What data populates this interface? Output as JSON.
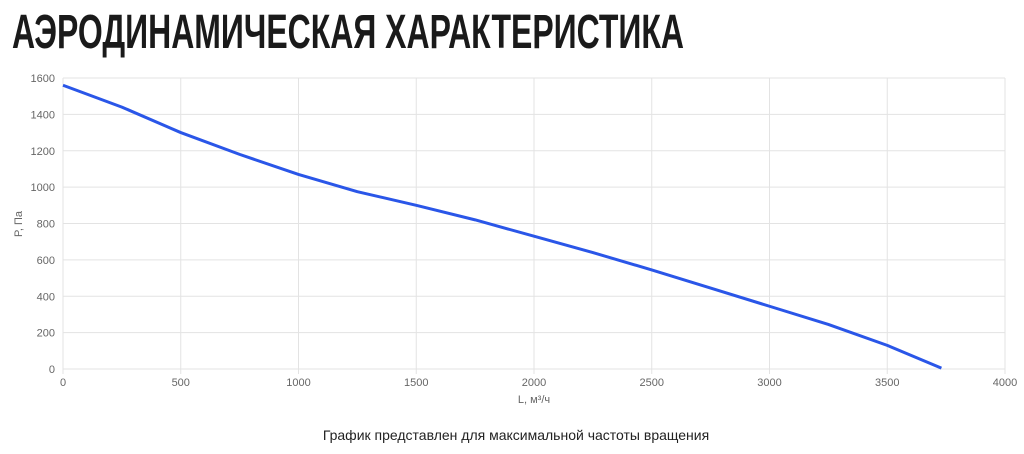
{
  "chart_data": {
    "type": "line",
    "title": "АЭРОДИНАМИЧЕСКАЯ ХАРАКТЕРИСТИКА",
    "caption": "График представлен для максимальной частоты вращения",
    "x_label": "L, м³/ч",
    "y_label": "P, Па",
    "x": [
      0,
      250,
      500,
      750,
      1000,
      1250,
      1500,
      1750,
      2000,
      2250,
      2500,
      2750,
      3000,
      3250,
      3500,
      3730
    ],
    "series": [
      {
        "color": "#2a56e8",
        "values": [
          1560,
          1440,
          1300,
          1180,
          1070,
          975,
          900,
          820,
          730,
          640,
          545,
          445,
          345,
          245,
          130,
          5
        ]
      }
    ],
    "xlim": [
      0,
      4000
    ],
    "xticks": [
      0,
      500,
      1000,
      1500,
      2000,
      2500,
      3000,
      3500,
      4000
    ],
    "ylim": [
      0,
      1600
    ],
    "yticks": [
      0,
      200,
      400,
      600,
      800,
      1000,
      1200,
      1400,
      1600
    ],
    "grid": true
  }
}
